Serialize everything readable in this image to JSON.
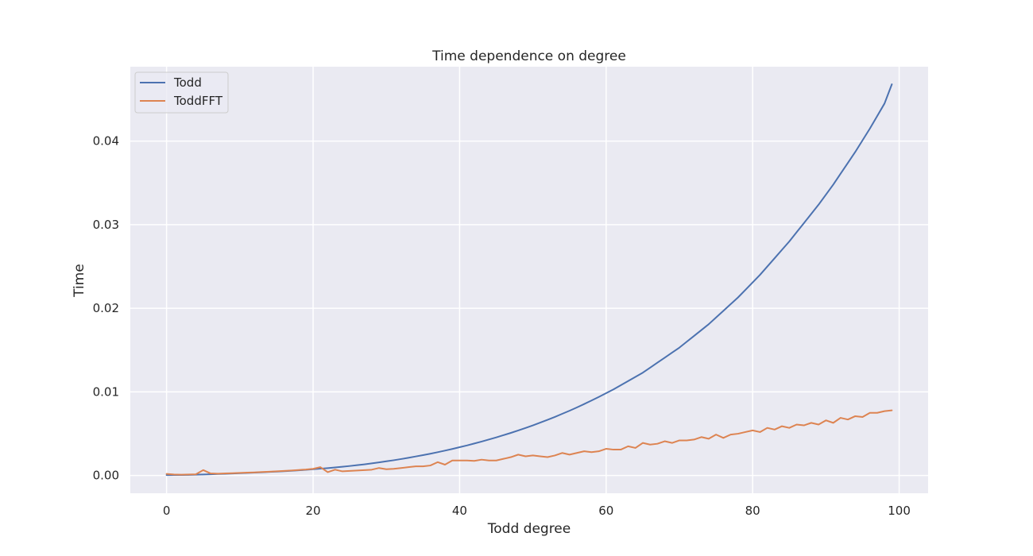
{
  "chart_data": {
    "type": "line",
    "title": "Time dependence on degree",
    "xlabel": "Todd degree",
    "ylabel": "Time",
    "xlim": [
      -4.95,
      103.95
    ],
    "ylim": [
      -0.00212,
      0.0489
    ],
    "xticks": [
      0,
      20,
      40,
      60,
      80,
      100
    ],
    "xtick_labels": [
      "0",
      "20",
      "40",
      "60",
      "80",
      "100"
    ],
    "yticks": [
      0.0,
      0.01,
      0.02,
      0.03,
      0.04
    ],
    "ytick_labels": [
      "0.00",
      "0.01",
      "0.02",
      "0.03",
      "0.04"
    ],
    "grid": true,
    "legend_position": "top-left",
    "x": [
      0,
      1,
      2,
      3,
      4,
      5,
      6,
      7,
      8,
      9,
      10,
      11,
      12,
      13,
      14,
      15,
      16,
      17,
      18,
      19,
      20,
      21,
      22,
      23,
      24,
      25,
      26,
      27,
      28,
      29,
      30,
      31,
      32,
      33,
      34,
      35,
      36,
      37,
      38,
      39,
      40,
      41,
      42,
      43,
      44,
      45,
      46,
      47,
      48,
      49,
      50,
      51,
      52,
      53,
      54,
      55,
      56,
      57,
      58,
      59,
      60,
      61,
      62,
      63,
      64,
      65,
      66,
      67,
      68,
      69,
      70,
      71,
      72,
      73,
      74,
      75,
      76,
      77,
      78,
      79,
      80,
      81,
      82,
      83,
      84,
      85,
      86,
      87,
      88,
      89,
      90,
      91,
      92,
      93,
      94,
      95,
      96,
      97,
      98,
      99
    ],
    "series": [
      {
        "name": "Todd",
        "color": "#4c72b0",
        "values": [
          5e-05,
          6e-05,
          7e-05,
          8e-05,
          0.0001,
          0.00012,
          0.00015,
          0.00018,
          0.00021,
          0.00024,
          0.00028,
          0.00031,
          0.00035,
          0.00039,
          0.00043,
          0.00047,
          0.00052,
          0.00057,
          0.00062,
          0.00068,
          0.00075,
          0.00082,
          0.00089,
          0.00097,
          0.00105,
          0.00114,
          0.00124,
          0.00134,
          0.00145,
          0.00157,
          0.0017,
          0.00183,
          0.00197,
          0.00212,
          0.00228,
          0.00244,
          0.00261,
          0.00279,
          0.00298,
          0.00318,
          0.00339,
          0.0036,
          0.00383,
          0.00406,
          0.00431,
          0.00456,
          0.00483,
          0.0051,
          0.00539,
          0.00569,
          0.006,
          0.00633,
          0.00666,
          0.00701,
          0.00738,
          0.00775,
          0.00814,
          0.00855,
          0.00897,
          0.0094,
          0.00985,
          0.0103,
          0.0108,
          0.0113,
          0.0118,
          0.0123,
          0.0129,
          0.0135,
          0.0141,
          0.0147,
          0.0153,
          0.016,
          0.0167,
          0.0174,
          0.0181,
          0.0189,
          0.0197,
          0.0205,
          0.0213,
          0.0222,
          0.0231,
          0.024,
          0.025,
          0.026,
          0.027,
          0.028,
          0.0291,
          0.0302,
          0.0313,
          0.0324,
          0.0336,
          0.0348,
          0.0361,
          0.0374,
          0.0387,
          0.0401,
          0.0415,
          0.043,
          0.0445,
          0.0468
        ]
      },
      {
        "name": "ToddFFT",
        "color": "#dd8452",
        "values": [
          0.0002,
          0.00012,
          0.0001,
          0.00012,
          0.00015,
          0.00065,
          0.00025,
          0.00022,
          0.00025,
          0.00028,
          0.00032,
          0.00035,
          0.00038,
          0.00042,
          0.00046,
          0.0005,
          0.00055,
          0.0006,
          0.00066,
          0.00072,
          0.0008,
          0.001,
          0.0004,
          0.0007,
          0.0005,
          0.00055,
          0.0006,
          0.00065,
          0.0007,
          0.0009,
          0.00075,
          0.0008,
          0.0009,
          0.001,
          0.0011,
          0.0011,
          0.0012,
          0.0016,
          0.0013,
          0.0018,
          0.0018,
          0.0018,
          0.00175,
          0.0019,
          0.0018,
          0.0018,
          0.002,
          0.0022,
          0.0025,
          0.0023,
          0.0024,
          0.0023,
          0.0022,
          0.0024,
          0.0027,
          0.0025,
          0.0027,
          0.0029,
          0.0028,
          0.0029,
          0.0032,
          0.0031,
          0.0031,
          0.0035,
          0.0033,
          0.0039,
          0.0037,
          0.0038,
          0.0041,
          0.0039,
          0.0042,
          0.0042,
          0.0043,
          0.0046,
          0.0044,
          0.0049,
          0.0045,
          0.0049,
          0.005,
          0.0052,
          0.0054,
          0.0052,
          0.0057,
          0.0055,
          0.0059,
          0.0057,
          0.0061,
          0.006,
          0.0063,
          0.0061,
          0.0066,
          0.0063,
          0.0069,
          0.0067,
          0.0071,
          0.007,
          0.0075,
          0.0075,
          0.0077,
          0.0078
        ]
      }
    ]
  }
}
